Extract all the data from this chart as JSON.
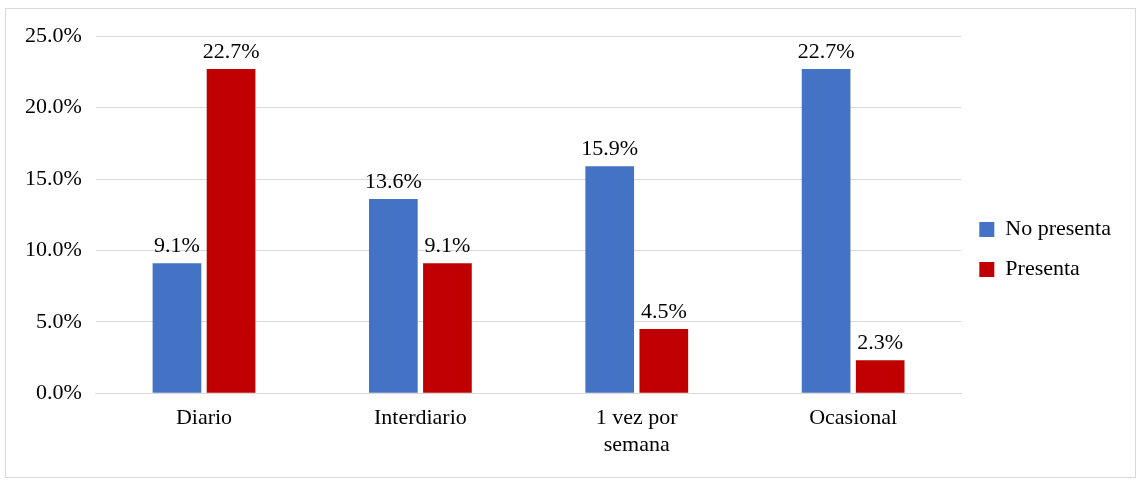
{
  "chart_data": {
    "type": "bar",
    "categories": [
      "Diario",
      "Interdiario",
      "1 vez por semana",
      "Ocasional"
    ],
    "series": [
      {
        "name": "No presenta",
        "color": "#4472c4",
        "values": [
          9.1,
          13.6,
          15.9,
          22.7
        ],
        "value_labels": [
          "9.1%",
          "13.6%",
          "15.9%",
          "22.7%"
        ]
      },
      {
        "name": "Presenta",
        "color": "#c00000",
        "values": [
          22.7,
          9.1,
          4.5,
          2.3
        ],
        "value_labels": [
          "22.7%",
          "9.1%",
          "4.5%",
          "2.3%"
        ]
      }
    ],
    "ylim": [
      0,
      25
    ],
    "yticks": [
      {
        "value": 0,
        "label": "0.0%"
      },
      {
        "value": 5,
        "label": "5.0%"
      },
      {
        "value": 10,
        "label": "10.0%"
      },
      {
        "value": 15,
        "label": "15.0%"
      },
      {
        "value": 20,
        "label": "20.0%"
      },
      {
        "value": 25,
        "label": "25.0%"
      }
    ],
    "grid": "y",
    "legend": "right"
  }
}
